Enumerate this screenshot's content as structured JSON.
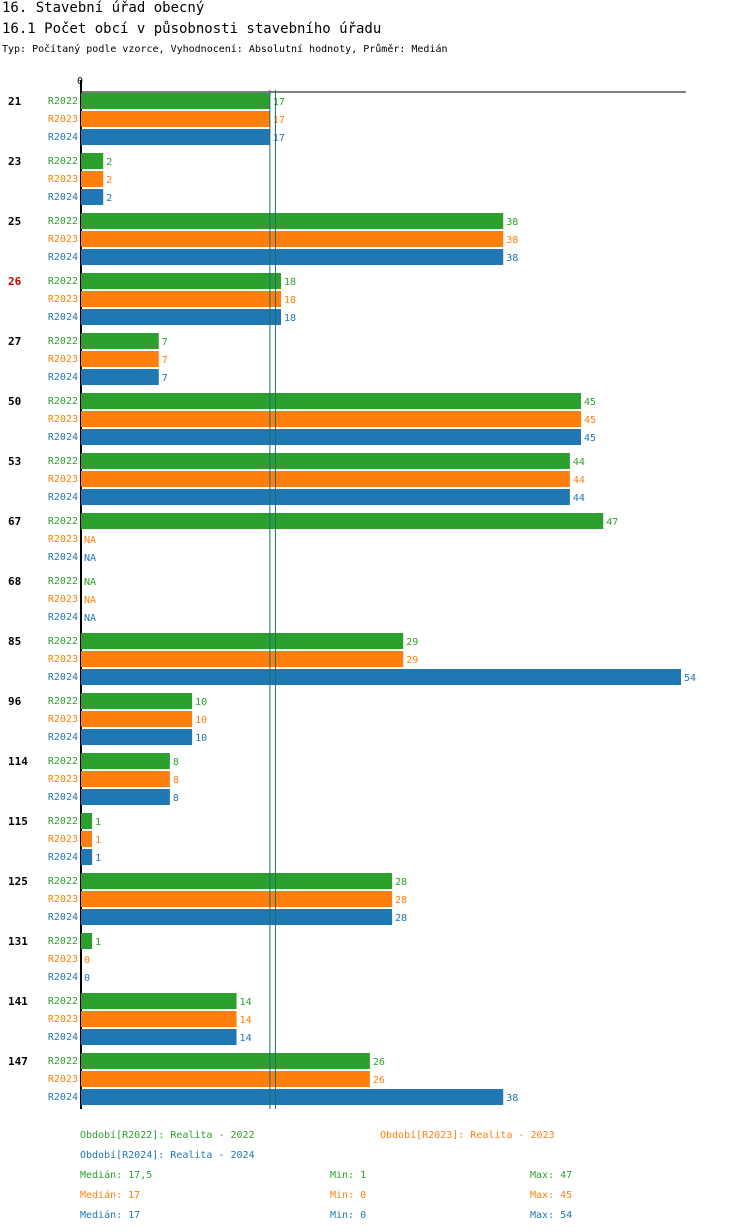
{
  "header": {
    "title": "16. Stavební úřad obecný",
    "subtitle": "16.1 Počet obcí v působnosti stavebního úřadu",
    "type_line": "Typ: Počítaný podle vzorce, Vyhodnocení: Absolutní hodnoty, Průměr: Medián"
  },
  "colors": {
    "R2022": "#2ca02c",
    "R2023": "#ff7f0e",
    "R2024": "#1f77b4",
    "highlight": "#cc0000",
    "median_line": "#1b6e6e"
  },
  "chart_data": {
    "type": "bar",
    "orientation": "horizontal",
    "axis_zero_label": "0",
    "highlight_category": "26",
    "categories": [
      "21",
      "23",
      "25",
      "26",
      "27",
      "50",
      "53",
      "67",
      "68",
      "85",
      "96",
      "114",
      "115",
      "125",
      "131",
      "141",
      "147"
    ],
    "series": [
      {
        "name": "R2022",
        "values": [
          17,
          2,
          38,
          18,
          7,
          45,
          44,
          47,
          null,
          29,
          10,
          8,
          1,
          28,
          1,
          14,
          26
        ],
        "labels": [
          "17",
          "2",
          "38",
          "18",
          "7",
          "45",
          "44",
          "47",
          "NA",
          "29",
          "10",
          "8",
          "1",
          "28",
          "1",
          "14",
          "26"
        ]
      },
      {
        "name": "R2023",
        "values": [
          17,
          2,
          38,
          18,
          7,
          45,
          44,
          null,
          null,
          29,
          10,
          8,
          1,
          28,
          0,
          14,
          26
        ],
        "labels": [
          "17",
          "2",
          "38",
          "18",
          "7",
          "45",
          "44",
          "NA",
          "NA",
          "29",
          "10",
          "8",
          "1",
          "28",
          "0",
          "14",
          "26"
        ]
      },
      {
        "name": "R2024",
        "values": [
          17,
          2,
          38,
          18,
          7,
          45,
          44,
          null,
          null,
          54,
          10,
          8,
          1,
          28,
          0,
          14,
          38
        ],
        "labels": [
          "17",
          "2",
          "38",
          "18",
          "7",
          "45",
          "44",
          "NA",
          "NA",
          "54",
          "10",
          "8",
          "1",
          "28",
          "0",
          "14",
          "38"
        ]
      }
    ],
    "medians": [
      17.5,
      17,
      17
    ],
    "xlim": [
      0,
      54
    ]
  },
  "legend": {
    "r2022": "Období[R2022]: Realita - 2022",
    "r2023": "Období[R2023]: Realita - 2023",
    "r2024": "Období[R2024]: Realita - 2024"
  },
  "stats": [
    {
      "median": "Medián: 17,5",
      "min": "Min: 1",
      "max": "Max: 47"
    },
    {
      "median": "Medián: 17",
      "min": "Min: 0",
      "max": "Max: 45"
    },
    {
      "median": "Medián: 17",
      "min": "Min: 0",
      "max": "Max: 54"
    }
  ]
}
